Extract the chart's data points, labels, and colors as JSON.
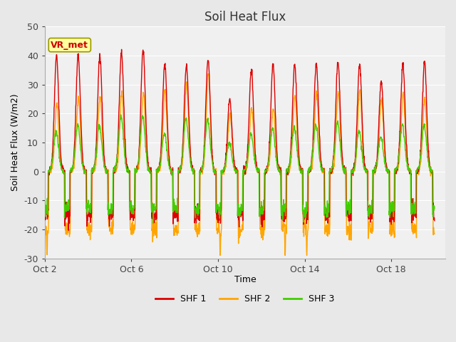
{
  "title": "Soil Heat Flux",
  "ylabel": "Soil Heat Flux (W/m2)",
  "xlabel": "Time",
  "ylim": [
    -30,
    50
  ],
  "background_color": "#e8e8e8",
  "plot_bg_color": "#f0f0f0",
  "shf1_color": "#dd0000",
  "shf2_color": "#ffa500",
  "shf3_color": "#44cc00",
  "legend_label1": "SHF 1",
  "legend_label2": "SHF 2",
  "legend_label3": "SHF 3",
  "annotation_text": "VR_met",
  "annotation_color": "#cc0000",
  "annotation_bg": "#ffffa0",
  "annotation_border": "#999900",
  "x_tick_labels": [
    "Oct 2",
    "Oct 6",
    "Oct 10",
    "Oct 14",
    "Oct 18"
  ],
  "x_tick_positions": [
    1,
    5,
    9,
    13,
    17
  ],
  "y_ticks": [
    -30,
    -20,
    -10,
    0,
    10,
    20,
    30,
    40,
    50
  ],
  "grid_color": "#ffffff",
  "line_width": 1.0,
  "n_days": 18,
  "samples_per_day": 96,
  "shf1_peaks": [
    40,
    40,
    40,
    41,
    42,
    37,
    37,
    39,
    25,
    35,
    37,
    37,
    37,
    38,
    37,
    31,
    37,
    38
  ],
  "shf2_peaks": [
    23,
    25,
    26,
    27,
    27,
    28,
    30,
    34,
    20,
    22,
    22,
    26,
    27,
    27,
    28,
    25,
    27,
    25
  ],
  "shf3_peaks": [
    14,
    16,
    16,
    19,
    19,
    13,
    18,
    18,
    10,
    13,
    15,
    15,
    16,
    17,
    14,
    12,
    16,
    16
  ],
  "shf1_night": -15,
  "shf2_night": -20,
  "shf3_night": -13,
  "deep_spike_days": [
    0,
    8,
    11,
    12
  ],
  "deep_spike_val": -29
}
